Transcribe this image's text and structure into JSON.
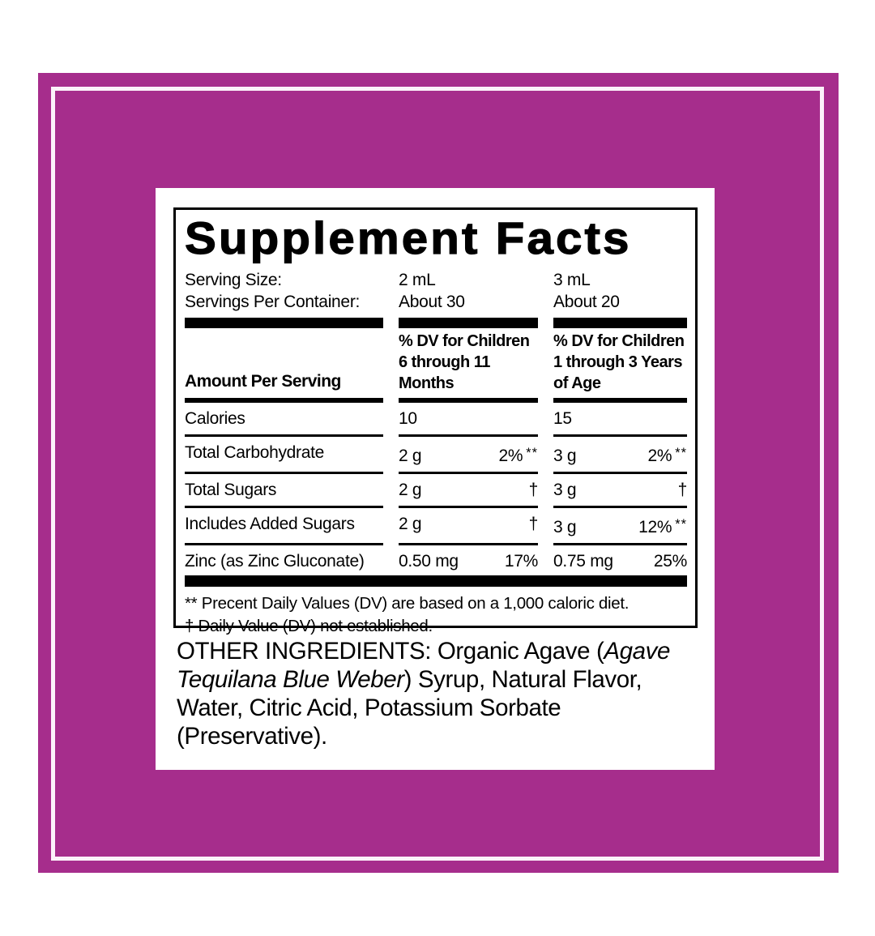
{
  "colors": {
    "page_background": "#ffffff",
    "board_background": "#a62d8c",
    "inset_line": "#fcf2fa",
    "panel_background": "#ffffff",
    "ink": "#000000"
  },
  "supplement_facts": {
    "title": "Supplement Facts",
    "serving_info": {
      "rows": [
        {
          "label": "Serving Size:",
          "col1": "2 mL",
          "col2": "3 mL"
        },
        {
          "label": "Servings Per Container:",
          "col1": "About 30",
          "col2": "About 20"
        }
      ]
    },
    "columns": {
      "amount_header": "Amount Per Serving",
      "col1_header": "% DV for Children 6 through 11 Months",
      "col2_header": "% DV for Children 1 through 3 Years of Age"
    },
    "rows": [
      {
        "name": "Calories",
        "c1_amount": "10",
        "c1_pct": "",
        "c1_mark": "",
        "c2_amount": "15",
        "c2_pct": "",
        "c2_mark": ""
      },
      {
        "name": "Total Carbohydrate",
        "c1_amount": "2 g",
        "c1_pct": "2%",
        "c1_mark": "**",
        "c2_amount": "3 g",
        "c2_pct": "2%",
        "c2_mark": "**"
      },
      {
        "name": "Total Sugars",
        "c1_amount": "2 g",
        "c1_pct": "†",
        "c1_mark": "",
        "c2_amount": "3 g",
        "c2_pct": "†",
        "c2_mark": ""
      },
      {
        "name": "Includes Added Sugars",
        "c1_amount": "2 g",
        "c1_pct": "†",
        "c1_mark": "",
        "c2_amount": "3 g",
        "c2_pct": "12%",
        "c2_mark": "**"
      },
      {
        "name": "Zinc (as Zinc Gluconate)",
        "c1_amount": "0.50 mg",
        "c1_pct": "17%",
        "c1_mark": "",
        "c2_amount": "0.75 mg",
        "c2_pct": "25%",
        "c2_mark": ""
      }
    ],
    "footnotes": [
      "** Precent Daily Values (DV) are based on a 1,000 caloric diet.",
      "† Daily Value (DV) not established."
    ]
  },
  "other_ingredients": {
    "lead": "OTHER INGREDIENTS: Organic Agave (",
    "italic": "Agave Tequilana Blue Weber",
    "tail": ") Syrup, Natural Flavor, Water, Citric Acid, Potassium Sorbate (Preservative)."
  }
}
